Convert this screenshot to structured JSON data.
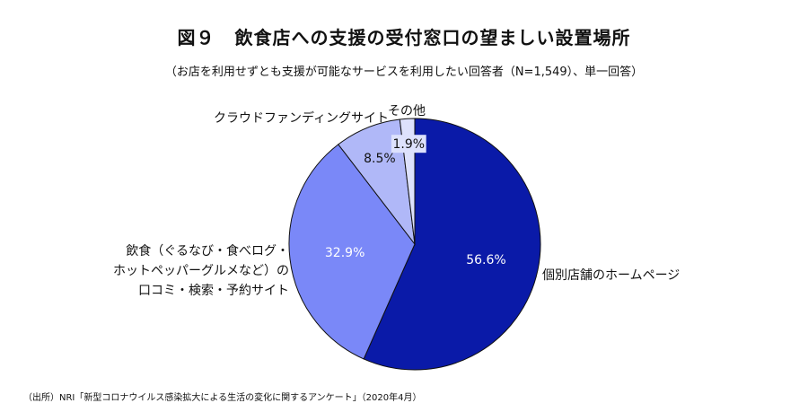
{
  "title": {
    "figure_no": "図９",
    "text": "飲食店への支援の受付窓口の望ましい設置場所"
  },
  "subtitle": "（お店を利用せずとも支援が可能なサービスを利用したい回答者（N=1,549）、単一回答）",
  "source": "（出所）NRI「新型コロナウイルス感染拡大による生活の変化に関するアンケート」（2020年4月）",
  "chart_data": {
    "type": "pie",
    "start": "12 o'clock",
    "direction": "clockwise",
    "categories": [
      "個別店舗のホームページ",
      "飲食（ぐるなび・食べログ・ホットペッパーグルメなど）の口コミ・検索・予約サイト",
      "クラウドファンディングサイト",
      "その他"
    ],
    "values": [
      56.6,
      32.9,
      8.5,
      1.9
    ],
    "value_labels": [
      "56.6%",
      "32.9%",
      "8.5%",
      "1.9%"
    ],
    "label_lines": [
      [
        "個別店舗のホームページ"
      ],
      [
        "飲食（ぐるなび・食べログ・",
        "ホットペッパーグルメなど）の",
        "口コミ・検索・予約サイト"
      ],
      [
        "クラウドファンディングサイト"
      ],
      [
        "その他"
      ]
    ],
    "colors": [
      "#0a1aa8",
      "#7a88f8",
      "#b0b8f8",
      "#dde1fc"
    ],
    "value_label_colors": [
      "#ffffff",
      "#ffffff",
      "#111111",
      "#111111"
    ]
  }
}
